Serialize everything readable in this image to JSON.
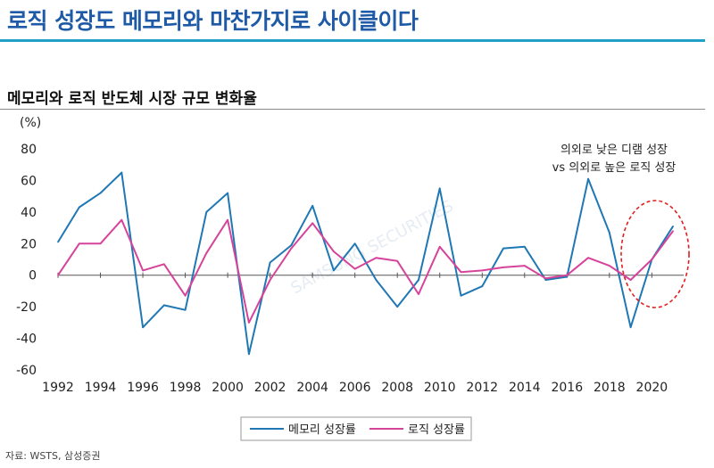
{
  "header": {
    "headline": "로직 성장도 메모리와 마찬가지로 사이클이다",
    "subtitle": "메모리와 로직 반도체 시장 규모 변화율",
    "source": "자료: WSTS, 삼성증권"
  },
  "colors": {
    "memory": "#1f78b4",
    "logic": "#d6439a",
    "accent": "#1f5aa6",
    "rule": "#22a0c8",
    "circle": "#e02020"
  },
  "chart_data": {
    "type": "line",
    "unit_label": "(%)",
    "x": [
      1992,
      1993,
      1994,
      1995,
      1996,
      1997,
      1998,
      1999,
      2000,
      2001,
      2002,
      2003,
      2004,
      2005,
      2006,
      2007,
      2008,
      2009,
      2010,
      2011,
      2012,
      2013,
      2014,
      2015,
      2016,
      2017,
      2018,
      2019,
      2020,
      2021
    ],
    "xticks": [
      1992,
      1994,
      1996,
      1998,
      2000,
      2002,
      2004,
      2006,
      2008,
      2010,
      2012,
      2014,
      2016,
      2018,
      2020
    ],
    "yticks": [
      80,
      60,
      40,
      20,
      0,
      -20,
      -40,
      -60
    ],
    "ylim": [
      -60,
      80
    ],
    "xlim": [
      1992,
      2021.5
    ],
    "series": [
      {
        "name": "메모리 성장률",
        "color": "#1f78b4",
        "values": [
          21,
          43,
          52,
          65,
          -33,
          -19,
          -22,
          40,
          52,
          -50,
          8,
          19,
          44,
          3,
          20,
          -3,
          -20,
          -3,
          55,
          -13,
          -7,
          17,
          18,
          -3,
          -1,
          61,
          27,
          -33,
          10,
          31
        ]
      },
      {
        "name": "로직 성장률",
        "color": "#d6439a",
        "values": [
          0,
          20,
          20,
          35,
          3,
          7,
          -13,
          14,
          35,
          -30,
          -3,
          17,
          33,
          15,
          4,
          11,
          9,
          -12,
          18,
          2,
          3,
          5,
          6,
          -2,
          0,
          11,
          6,
          -3,
          10,
          28
        ]
      }
    ],
    "annotation": {
      "line1": "의외로 낮은 디램 성장",
      "line2": "vs 의외로 높은 로직 성장"
    },
    "legend": [
      "메모리 성장률",
      "로직 성장률"
    ],
    "watermark": "SAMSUNG SECURITIES"
  }
}
